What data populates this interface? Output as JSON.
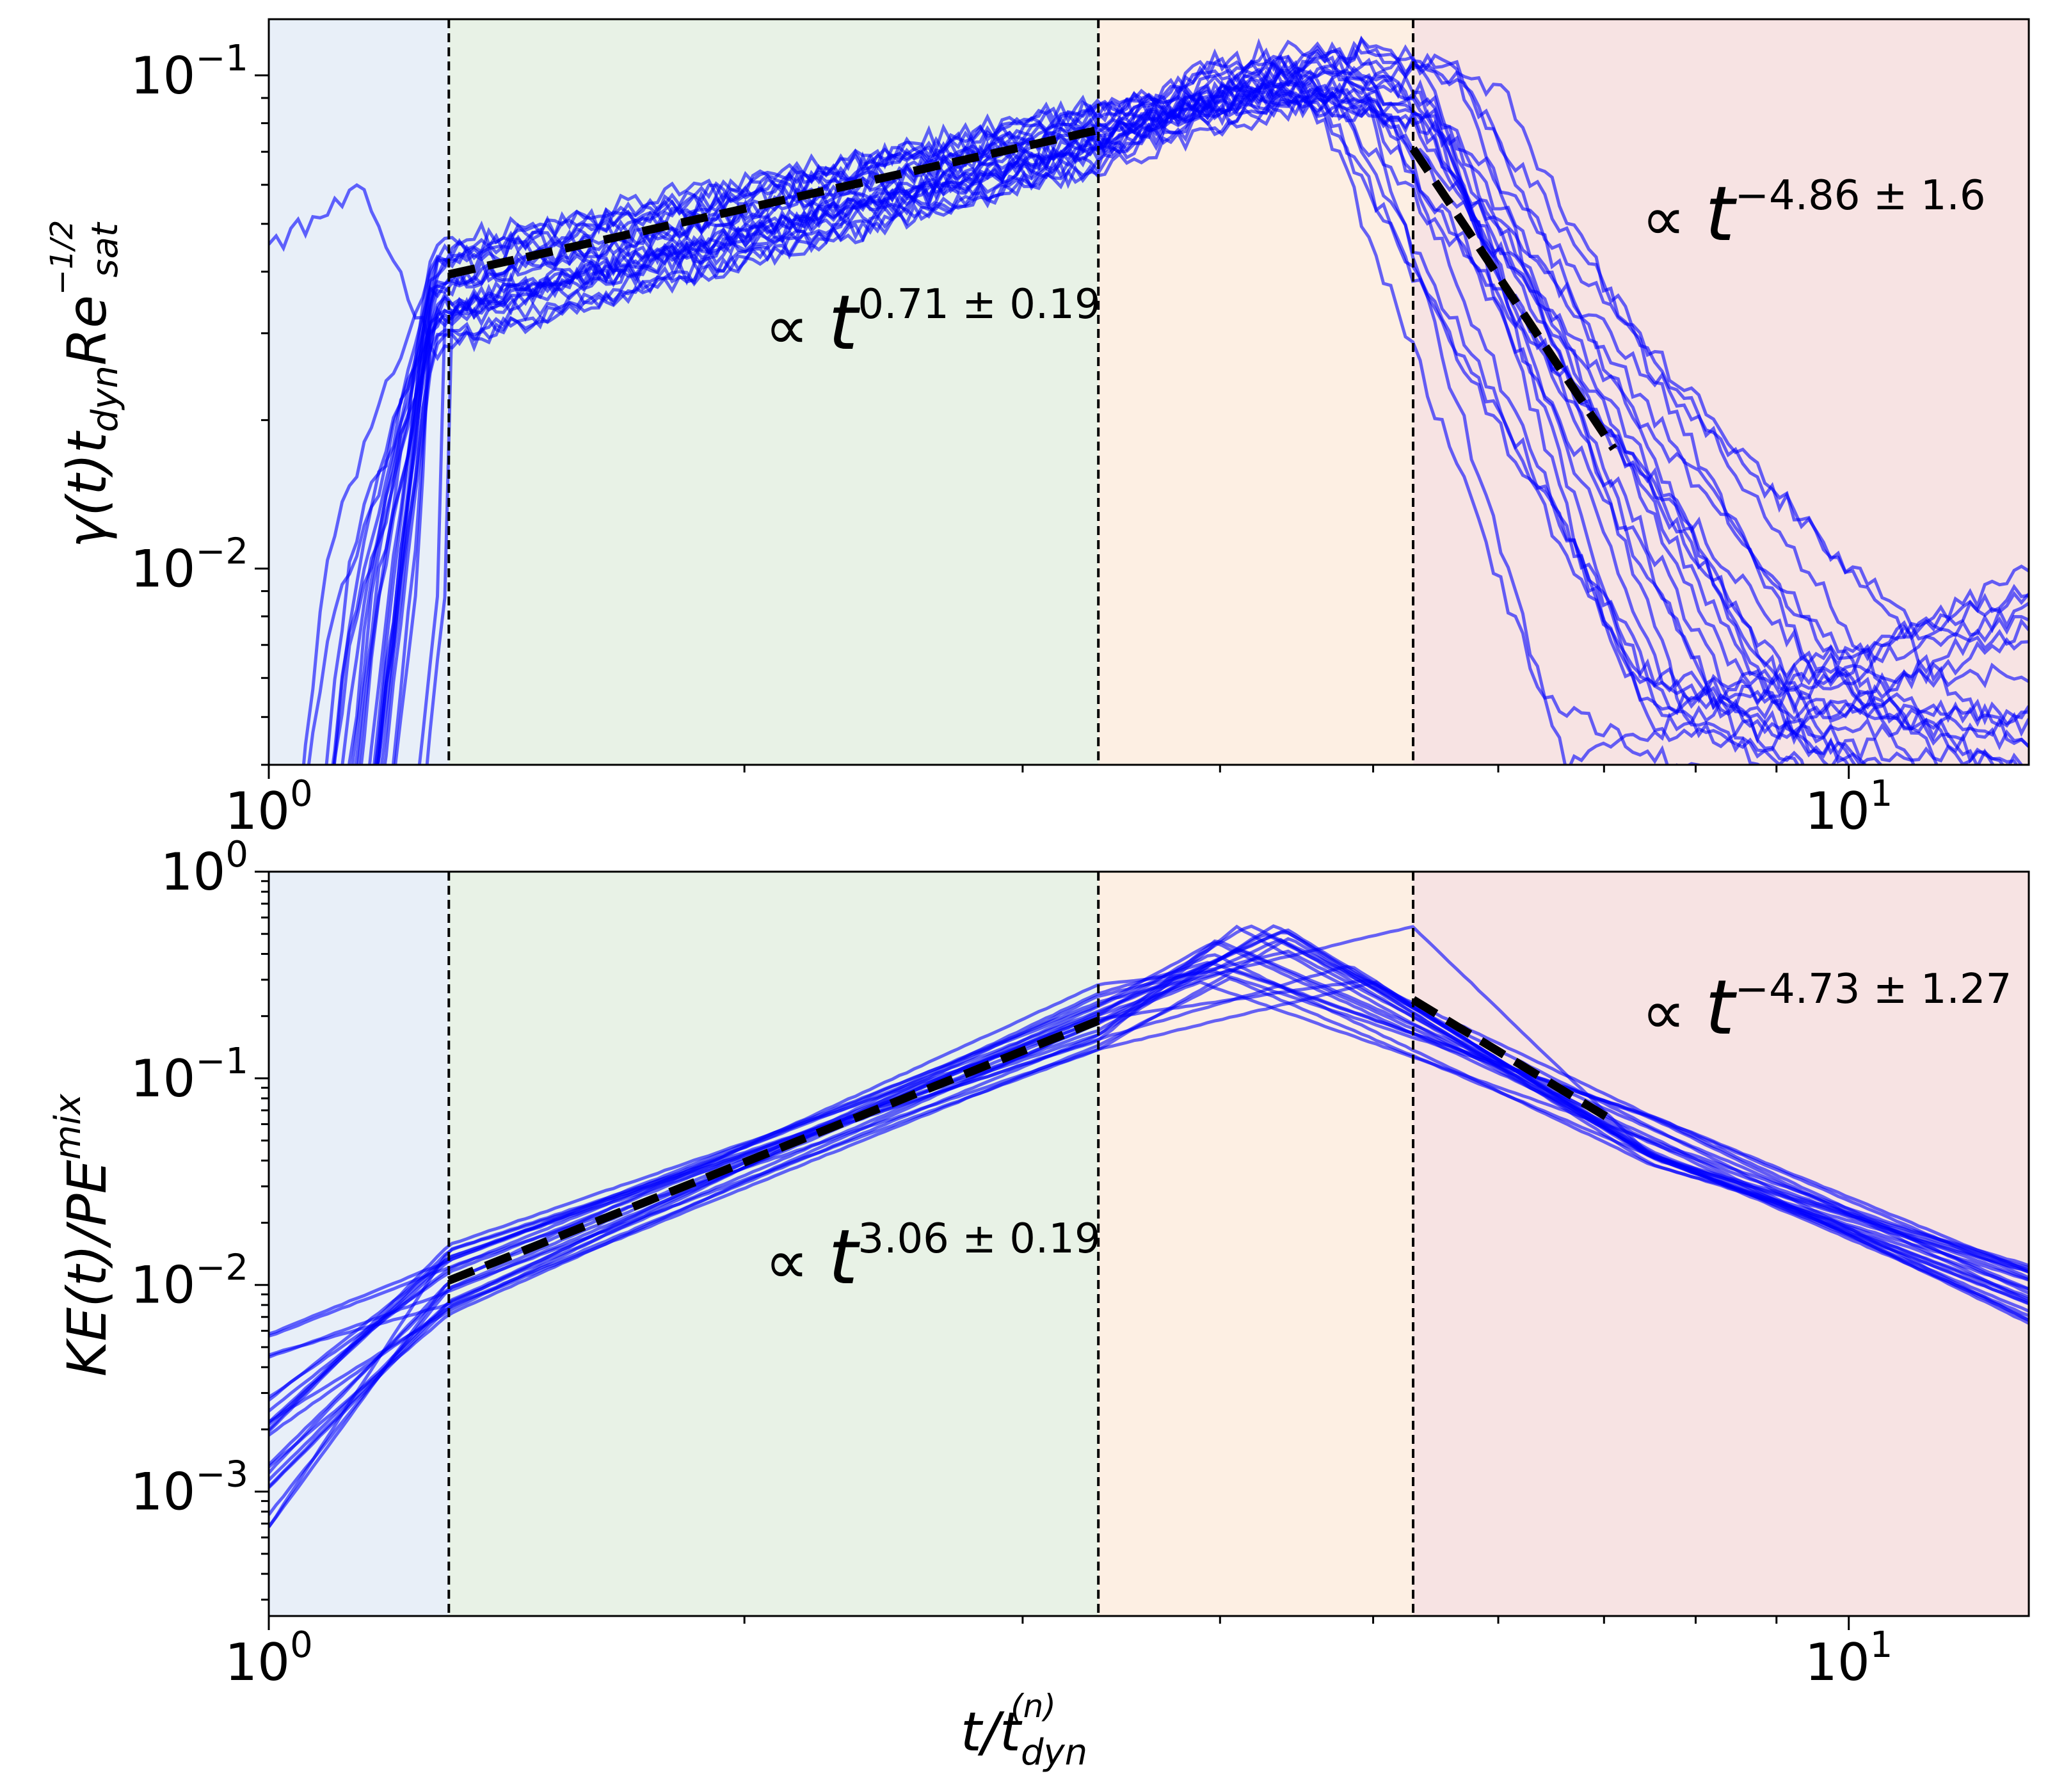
{
  "chart_data": [
    {
      "type": "line",
      "panel": "top",
      "xscale": "log",
      "yscale": "log",
      "xlim": [
        1,
        13
      ],
      "ylim": [
        0.004,
        0.13
      ],
      "ylabel": "γ(t)t_dyn Re_sat^(−1/2)",
      "ylabel_display": "γ(t)t",
      "ylabel_sub": "dyn",
      "ylabel_mid": "Re",
      "ylabel_sup": "−1/2",
      "ylabel_sub2": "sat",
      "xticks": [
        {
          "value": 1,
          "base": "10",
          "exp": "0"
        },
        {
          "value": 10,
          "base": "10",
          "exp": "1"
        }
      ],
      "yticks": [
        {
          "value": 0.01,
          "base": "10",
          "exp": "−2"
        },
        {
          "value": 0.1,
          "base": "10",
          "exp": "−1"
        }
      ],
      "phase_boundaries": [
        1.3,
        3.35,
        5.3
      ],
      "phase_colors": [
        "#e8eff8",
        "#e8f2e6",
        "#fdefe3",
        "#f7e3e3"
      ],
      "line_color": "#0000ff",
      "n_series": 26,
      "growth_phase_curve": {
        "x_start": 1.3,
        "x_end": 3.35,
        "y_start": 0.04,
        "y_end": 0.076
      },
      "peak": {
        "x": 4.6,
        "y": 0.1
      },
      "fits": [
        {
          "x": [
            1.3,
            3.35
          ],
          "y": [
            0.0395,
            0.0775
          ],
          "label_prefix": "∝ ",
          "label_var": "t",
          "label_exp": "0.71 ± 0.19"
        },
        {
          "x": [
            5.3,
            7.1
          ],
          "y": [
            0.071,
            0.0175
          ],
          "label_prefix": "∝ ",
          "label_var": "t",
          "label_exp": "−4.86 ± 1.6"
        }
      ]
    },
    {
      "type": "line",
      "panel": "bottom",
      "xscale": "log",
      "yscale": "log",
      "xlim": [
        1,
        13
      ],
      "ylim": [
        0.00025,
        1
      ],
      "ylabel": "KE(t)/PE^mix",
      "ylabel_display": "KE(t)/PE",
      "ylabel_sup": "mix",
      "xlabel": "t/t_dyn^(n)",
      "xlabel_display": "t/t",
      "xlabel_sub": "dyn",
      "xlabel_sup": "(n)",
      "xticks": [
        {
          "value": 1,
          "base": "10",
          "exp": "0"
        },
        {
          "value": 10,
          "base": "10",
          "exp": "1"
        }
      ],
      "yticks": [
        {
          "value": 0.001,
          "base": "10",
          "exp": "−3"
        },
        {
          "value": 0.01,
          "base": "10",
          "exp": "−2"
        },
        {
          "value": 0.1,
          "base": "10",
          "exp": "−1"
        },
        {
          "value": 1,
          "base": "10",
          "exp": "0"
        }
      ],
      "phase_boundaries": [
        1.3,
        3.35,
        5.3
      ],
      "phase_colors": [
        "#e8eff8",
        "#e8f2e6",
        "#fdefe3",
        "#f7e3e3"
      ],
      "line_color": "#0000ff",
      "n_series": 22,
      "start_value_range": [
        0.0006,
        0.006
      ],
      "peak": {
        "x": 4.5,
        "y": 0.4
      },
      "end_value": 0.009,
      "fits": [
        {
          "x": [
            1.3,
            3.35
          ],
          "y": [
            0.0105,
            0.19
          ],
          "label_prefix": "∝ ",
          "label_var": "t",
          "label_exp": "3.06 ± 0.19"
        },
        {
          "x": [
            5.3,
            7.1
          ],
          "y": [
            0.24,
            0.062
          ],
          "label_prefix": "∝ ",
          "label_var": "t",
          "label_exp": "−4.73 ± 1.27"
        }
      ]
    }
  ]
}
